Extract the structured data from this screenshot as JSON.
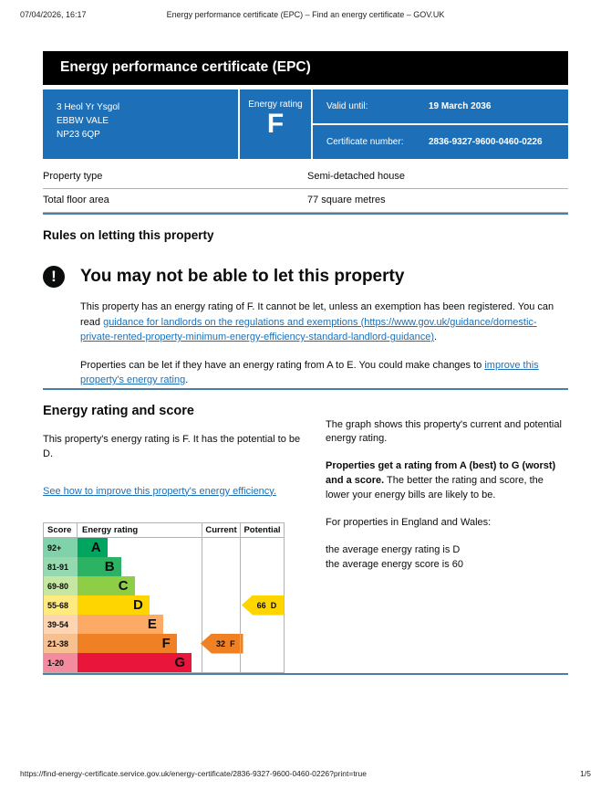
{
  "print_header": {
    "datetime": "07/04/2026, 16:17",
    "title": "Energy performance certificate (EPC) – Find an energy certificate – GOV.UK"
  },
  "banner": {
    "title": "Energy performance certificate (EPC)"
  },
  "colors": {
    "govuk_blue": "#1d70b8",
    "link_blue": "#1d70b8",
    "banner_black": "#000000",
    "section_break_blue": "#4e7da6",
    "border_grey": "#b1b4b6"
  },
  "summary": {
    "address_lines": [
      "3 Heol Yr Ysgol",
      "EBBW VALE",
      "NP23 6QP"
    ],
    "energy_rating_label": "Energy rating",
    "energy_rating_value": "F",
    "valid_until_label": "Valid until:",
    "valid_until_value": "19 March 2036",
    "cert_number_label": "Certificate number:",
    "cert_number_value": "2836-9327-9600-0460-0226"
  },
  "property": {
    "rows": [
      {
        "label": "Property type",
        "value": "Semi-detached house"
      },
      {
        "label": "Total floor area",
        "value": "77 square metres"
      }
    ]
  },
  "rules": {
    "heading": "Rules on letting this property",
    "warning_heading": "You may not be able to let this property",
    "para1_pre": "This property has an energy rating of F. It cannot be let, unless an exemption has been registered. You can read ",
    "para1_link": "guidance for landlords on the regulations and exemptions (https://www.gov.uk/guidance/domestic-private-rented-property-minimum-energy-efficiency-standard-landlord-guidance)",
    "para1_post": ".",
    "para2_pre": "Properties can be let if they have an energy rating from A to E. You could make changes to ",
    "para2_link": "improve this property's energy rating",
    "para2_post": "."
  },
  "rating_score": {
    "heading": "Energy rating and score",
    "p1": "This property's energy rating is F. It has the potential to be D.",
    "link": "See how to improve this property's energy efficiency."
  },
  "graph_info": {
    "p1": "The graph shows this property's current and potential energy rating.",
    "p2_bold": "Properties get a rating from A (best) to G (worst) and a score.",
    "p2_rest": " The better the rating and score, the lower your energy bills are likely to be.",
    "p3": "For properties in England and Wales:",
    "avg_line1": "the average energy rating is D",
    "avg_line2": "the average energy score is 60"
  },
  "chart_data": {
    "type": "bar",
    "title": "Energy rating and score graph",
    "columns": [
      "Score",
      "Energy rating",
      "Current",
      "Potential"
    ],
    "bands": [
      {
        "score_range": "92+",
        "letter": "A",
        "color": "#00a65f",
        "tint": "#7fd2a9",
        "width_pct": 24
      },
      {
        "score_range": "81-91",
        "letter": "B",
        "color": "#2bb363",
        "tint": "#95d9b1",
        "width_pct": 35
      },
      {
        "score_range": "69-80",
        "letter": "C",
        "color": "#8dce46",
        "tint": "#c6e7a2",
        "width_pct": 46
      },
      {
        "score_range": "55-68",
        "letter": "D",
        "color": "#ffd500",
        "tint": "#ffea80",
        "width_pct": 58
      },
      {
        "score_range": "39-54",
        "letter": "E",
        "color": "#fcaa65",
        "tint": "#fdd5b2",
        "width_pct": 69
      },
      {
        "score_range": "21-38",
        "letter": "F",
        "color": "#ef8023",
        "tint": "#f7c091",
        "width_pct": 80
      },
      {
        "score_range": "1-20",
        "letter": "G",
        "color": "#e9153b",
        "tint": "#f48a9d",
        "width_pct": 92
      }
    ],
    "current": {
      "score": "32",
      "letter": "F",
      "color": "#ef8023"
    },
    "potential": {
      "score": "66",
      "letter": "D",
      "color": "#ffd500"
    }
  },
  "footer": {
    "url": "https://find-energy-certificate.service.gov.uk/energy-certificate/2836-9327-9600-0460-0226?print=true",
    "page": "1/5"
  }
}
